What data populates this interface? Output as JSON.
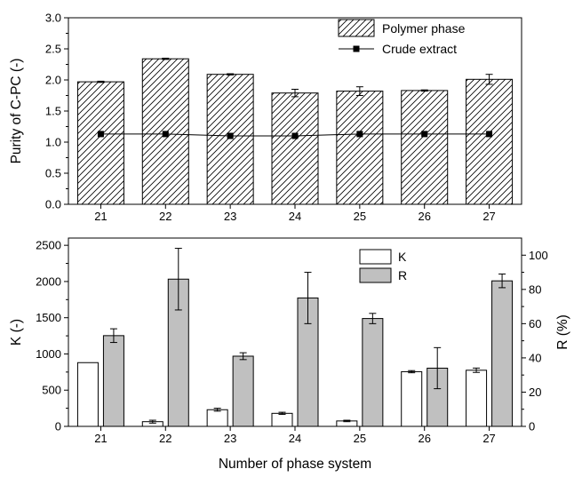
{
  "chart_data": [
    {
      "type": "bar",
      "categories": [
        "21",
        "22",
        "23",
        "24",
        "25",
        "26",
        "27"
      ],
      "ylabel": "Purity of C-PC (-)",
      "ylim": [
        0,
        3
      ],
      "yticks": [
        "0.0",
        "0.5",
        "1.0",
        "1.5",
        "2.0",
        "2.5",
        "3.0"
      ],
      "grid": false,
      "legend": "top-right",
      "series": [
        {
          "name": "Polymer phase",
          "type": "bar",
          "fill": "hatched",
          "values": [
            1.97,
            2.34,
            2.09,
            1.79,
            1.82,
            1.83,
            2.01
          ],
          "errors": [
            0.01,
            0.01,
            0.01,
            0.06,
            0.07,
            0.01,
            0.08
          ]
        },
        {
          "name": "Crude extract",
          "type": "line",
          "marker": "square",
          "values": [
            1.13,
            1.13,
            1.1,
            1.1,
            1.13,
            1.13,
            1.13
          ]
        }
      ]
    },
    {
      "type": "bar",
      "categories": [
        "21",
        "22",
        "23",
        "24",
        "25",
        "26",
        "27"
      ],
      "xlabel": "Number of phase system",
      "ylabel": "K (-)",
      "y2label": "R (%)",
      "ylim": [
        0,
        2600
      ],
      "y2lim": [
        0,
        110
      ],
      "yticks": [
        "0",
        "500",
        "1000",
        "1500",
        "2000",
        "2500"
      ],
      "y2ticks": [
        "0",
        "20",
        "40",
        "60",
        "80",
        "100"
      ],
      "grid": false,
      "legend": "top-center",
      "series": [
        {
          "name": "K",
          "type": "bar",
          "axis": "left",
          "color": "#ffffff",
          "values": [
            880,
            65,
            230,
            180,
            75,
            755,
            775
          ],
          "errors": [
            0,
            20,
            20,
            15,
            10,
            15,
            30
          ]
        },
        {
          "name": "R",
          "type": "bar",
          "axis": "right",
          "color": "#c0c0c0",
          "values": [
            53,
            86,
            41,
            75,
            63,
            34,
            85
          ],
          "errors": [
            4,
            18,
            2,
            15,
            3,
            12,
            4
          ]
        }
      ]
    }
  ]
}
